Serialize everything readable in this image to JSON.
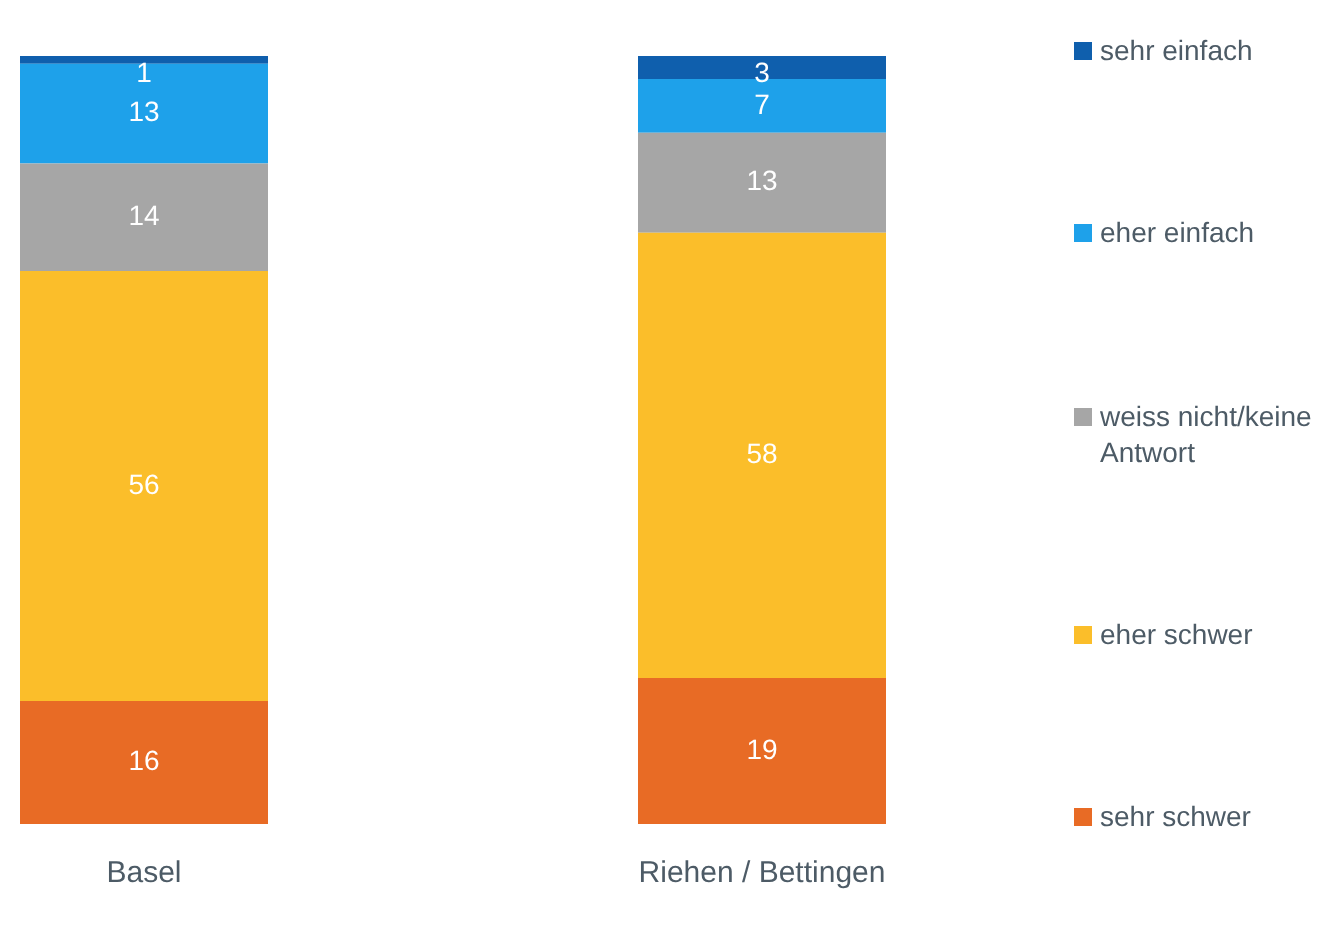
{
  "chart_data": {
    "type": "bar",
    "categories": [
      "Basel",
      "Riehen / Bettingen"
    ],
    "stacked": true,
    "data_labels": true,
    "legend": "right",
    "series": [
      {
        "name": "sehr schwer",
        "color": "#e86b25",
        "values": [
          16,
          19
        ]
      },
      {
        "name": "eher schwer",
        "color": "#fbbe2a",
        "values": [
          56,
          58
        ]
      },
      {
        "name": "weiss nicht/keine Antwort",
        "color": "#a6a6a6",
        "values": [
          14,
          13
        ]
      },
      {
        "name": "eher einfach",
        "color": "#1ea1ea",
        "values": [
          13,
          7
        ]
      },
      {
        "name": "sehr einfach",
        "color": "#0f5fad",
        "values": [
          1,
          3
        ]
      }
    ]
  }
}
